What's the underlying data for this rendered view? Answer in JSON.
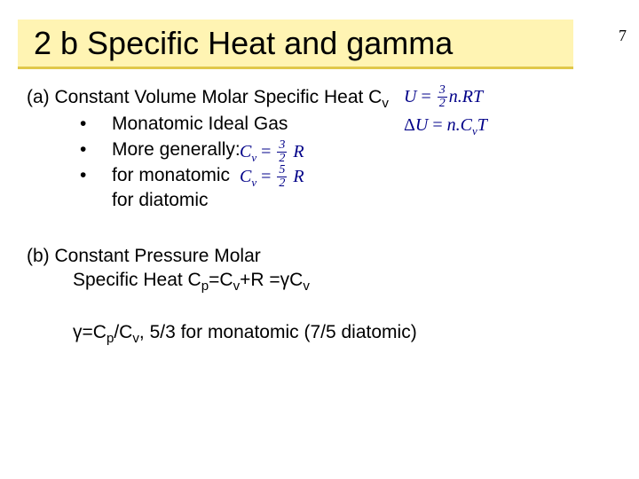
{
  "page_number": "7",
  "title": "2 b  Specific Heat and gamma",
  "section_a": {
    "head_prefix": "(a)   Constant Volume Molar Specific Heat C",
    "head_sub": "v",
    "bullets": [
      {
        "text": "Monatomic Ideal Gas"
      },
      {
        "text": "More generally:"
      },
      {
        "text_line1": "for monatomic",
        "text_line2": "for diatomic"
      }
    ]
  },
  "formulas": {
    "U1_lhs": "U",
    "U1_eq": " = ",
    "U1_frac_num": "3",
    "U1_frac_den": "2",
    "U1_rhs": "n.RT",
    "U2_delta": "Δ",
    "U2_lhs": "U",
    "U2_eq": " = ",
    "U2_rhs_a": "n.C",
    "U2_rhs_sub": "v",
    "U2_rhs_b": "T",
    "Cv_lhs": "C",
    "Cv_sub": "v",
    "Cv_eq": " = ",
    "Cv1_num": "3",
    "Cv1_den": "2",
    "Cv2_num": "5",
    "Cv2_den": "2",
    "Cv_R": " R"
  },
  "section_b": {
    "head": "(b)   Constant Pressure Molar",
    "sub_prefix": "Specific Heat C",
    "sub_p": "p",
    "sub_mid1": "=C",
    "sub_v1": "v",
    "sub_mid2": "+R =",
    "sub_gamma": "γ",
    "sub_mid3": "C",
    "sub_v2": "v"
  },
  "gamma_line": {
    "g1": "γ",
    "t1": "=C",
    "s1": "p",
    "t2": "/C",
    "s2": "v",
    "t3": ",   5/3 for monatomic (7/5 diatomic)"
  },
  "colors": {
    "banner_bg": "#fff4b3",
    "banner_border": "#e0c84a",
    "formula_color": "#000088",
    "text_color": "#000000",
    "background": "#ffffff"
  }
}
